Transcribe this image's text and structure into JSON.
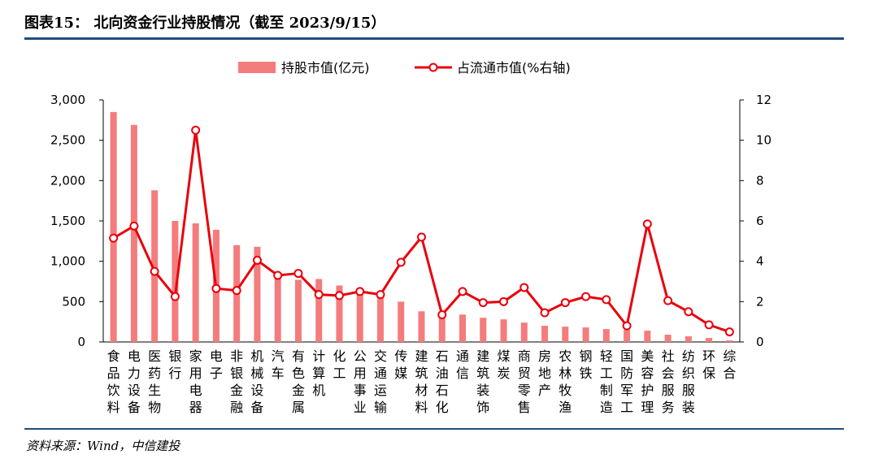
{
  "figure": {
    "title": "图表15： 北向资金行业持股情况（截至 2023/9/15）",
    "source": "资料来源：Wind，中信建投"
  },
  "colors": {
    "bar": "#f47c7c",
    "line": "#e8000b",
    "rule": "#1f4e79"
  },
  "chart_data": {
    "type": "bar",
    "title": "",
    "categories": [
      "食品饮料",
      "电力设备",
      "医药生物",
      "银行",
      "家用电器",
      "电子",
      "非银金融",
      "机械设备",
      "汽车",
      "有色金属",
      "计算机",
      "化工",
      "公用事业",
      "交通运输",
      "传媒",
      "建筑材料",
      "石油石化",
      "通信",
      "建筑装饰",
      "煤炭",
      "商贸零售",
      "房地产",
      "农林牧渔",
      "钢铁",
      "轻工制造",
      "国防军工",
      "美容护理",
      "社会服务",
      "纺织服装",
      "环保",
      "综合"
    ],
    "series": [
      {
        "name": "持股市值(亿元)",
        "type": "bar",
        "axis": "left",
        "values": [
          2850,
          2690,
          1880,
          1500,
          1470,
          1390,
          1200,
          1180,
          850,
          770,
          780,
          700,
          640,
          600,
          500,
          380,
          350,
          340,
          300,
          280,
          240,
          200,
          190,
          180,
          160,
          150,
          140,
          90,
          70,
          50,
          20
        ]
      },
      {
        "name": "占流通市值(%右轴)",
        "type": "line",
        "axis": "right",
        "values": [
          5.15,
          5.75,
          3.5,
          2.25,
          10.5,
          2.65,
          2.55,
          4.05,
          3.3,
          3.4,
          2.35,
          2.3,
          2.5,
          2.35,
          3.95,
          5.2,
          1.35,
          2.5,
          1.95,
          2.0,
          2.7,
          1.45,
          1.95,
          2.25,
          2.1,
          0.8,
          5.85,
          2.05,
          1.5,
          0.85,
          0.5
        ]
      }
    ],
    "ylim_left": [
      0,
      3000
    ],
    "yticks_left": [
      "0",
      "500",
      "1,000",
      "1,500",
      "2,000",
      "2,500",
      "3,000"
    ],
    "ylim_right": [
      0,
      12
    ],
    "yticks_right": [
      "0",
      "2",
      "4",
      "6",
      "8",
      "10",
      "12"
    ],
    "legend_position": "top-center",
    "grid": false
  }
}
